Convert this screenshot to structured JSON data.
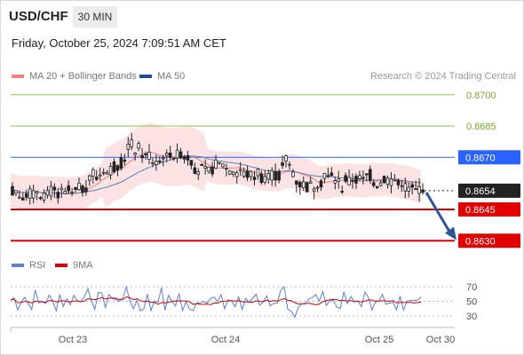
{
  "header": {
    "pair": "USD/CHF",
    "timeframe": "30 MIN",
    "datetime": "Friday, October 25, 2024 7:09:51 AM CET"
  },
  "legend": {
    "ma20_label": "MA 20 + Bollinger Bands",
    "ma20_color": "#f08080",
    "ma50_label": "MA 50",
    "ma50_color": "#1f4e8c",
    "credit": "Research © 2024 Trading Central"
  },
  "rsi_legend": {
    "rsi_label": "RSI",
    "rsi_color": "#5a7fd6",
    "ma_label": "9MA",
    "ma_color": "#e00000"
  },
  "chart_data": {
    "type": "candlestick",
    "ylim": [
      0.8625,
      0.8705
    ],
    "x_ticks": [
      "Oct 23",
      "Oct 24",
      "Oct 25",
      "Oct 30"
    ],
    "levels": [
      {
        "value": 0.87,
        "label": "0.8700",
        "kind": "target",
        "color": "#8cc63f"
      },
      {
        "value": 0.8685,
        "label": "0.8685",
        "kind": "target",
        "color": "#8cc63f"
      },
      {
        "value": 0.867,
        "label": "0.8670",
        "kind": "resistance",
        "color": "#2962ff"
      },
      {
        "value": 0.8654,
        "label": "0.8654",
        "kind": "last_price",
        "color": "#222222"
      },
      {
        "value": 0.8645,
        "label": "0.8645",
        "kind": "pivot",
        "color": "#e00000"
      },
      {
        "value": 0.863,
        "label": "0.8630",
        "kind": "support",
        "color": "#e00000"
      }
    ],
    "rsi_ticks": [
      "70",
      "50",
      "30"
    ],
    "rsi_range": [
      20,
      80
    ],
    "projection": {
      "from": 0.8654,
      "to": 0.8632
    }
  }
}
